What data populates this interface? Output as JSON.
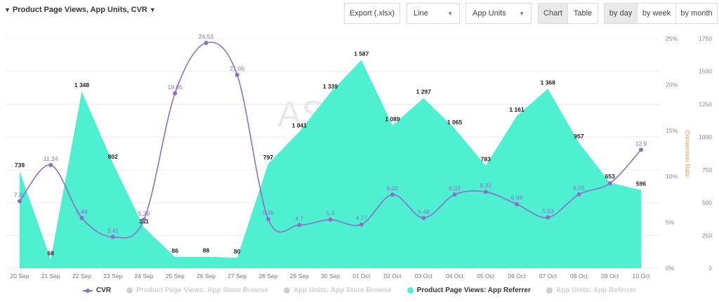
{
  "header": {
    "title": "Product Page Views, App Units, CVR",
    "export_label": "Export (.xlsx)",
    "chart_type_select": "Line",
    "metric_select": "App Units",
    "view_chart": "Chart",
    "view_table": "Table",
    "by_day": "by day",
    "by_week": "by week",
    "by_month": "by month"
  },
  "colors": {
    "area": "#4ff0d2",
    "cvr": "#8a6fc8",
    "legend_inactive": "#cfcfcf",
    "right_axis_title": "#f0a060"
  },
  "chart_data": {
    "type": "area",
    "categories": [
      "20 Sep",
      "21 Sep",
      "22 Sep",
      "23 Sep",
      "24 Sep",
      "25 Sep",
      "26 Sep",
      "27 Sep",
      "28 Sep",
      "29 Sep",
      "30 Sep",
      "01 Oct",
      "02 Oct",
      "03 Oct",
      "04 Oct",
      "05 Oct",
      "06 Oct",
      "07 Oct",
      "08 Oct",
      "09 Oct",
      "10 Oct"
    ],
    "series": [
      {
        "name": "Product Page Views: App Referrer",
        "axis": "right",
        "type": "area",
        "values": [
          739,
          68,
          1348,
          802,
          311,
          86,
          88,
          80,
          797,
          1041,
          1339,
          1587,
          1089,
          1297,
          1065,
          783,
          1161,
          1368,
          957,
          653,
          596
        ],
        "labels": [
          "739",
          "68",
          "1 348",
          "802",
          "311",
          "86",
          "88",
          "80",
          "797",
          "1 041",
          "1 339",
          "1 587",
          "1 089",
          "1 297",
          "1 065",
          "783",
          "1 161",
          "1 368",
          "957",
          "653",
          "596"
        ]
      },
      {
        "name": "CVR",
        "axis": "left",
        "type": "line",
        "values": [
          7.31,
          11.24,
          5.48,
          3.41,
          5.29,
          19.05,
          24.53,
          21.05,
          5.35,
          4.7,
          5.3,
          4.77,
          8.02,
          5.48,
          8.03,
          8.32,
          6.98,
          5.53,
          8.05,
          9.25,
          12.9
        ],
        "labels": [
          "7.31",
          "11.24",
          "5.48",
          "3.41",
          "5.29",
          "19.05",
          "24.53",
          "21.05",
          "5.35",
          "4.7",
          "5.3",
          "4.77",
          "8.02",
          "5.48",
          "8.03",
          "8.32",
          "6.98",
          "5.53",
          "8.05",
          "",
          "12.9"
        ]
      }
    ],
    "left_axis": {
      "ticks": [
        "0%",
        "5%",
        "10%",
        "15%",
        "20%",
        "25%"
      ],
      "ylim": [
        0,
        25
      ]
    },
    "right_axis": {
      "ticks": [
        "0",
        "250",
        "500",
        "750",
        "1000",
        "1250",
        "1500",
        "1750"
      ],
      "ylim": [
        0,
        1750
      ],
      "title": "Conversion Rate"
    },
    "watermark": "AS",
    "legend": [
      {
        "label": "CVR",
        "active": true,
        "kind": "line"
      },
      {
        "label": "Product Page Views: App Store Browse",
        "active": false,
        "kind": "dot"
      },
      {
        "label": "App Units: App Store Browse",
        "active": false,
        "kind": "dot"
      },
      {
        "label": "Product Page Views: App Referrer",
        "active": true,
        "kind": "dot"
      },
      {
        "label": "App Units: App Referrer",
        "active": false,
        "kind": "dot"
      }
    ],
    "legend_position": "bottom",
    "grid": true
  }
}
